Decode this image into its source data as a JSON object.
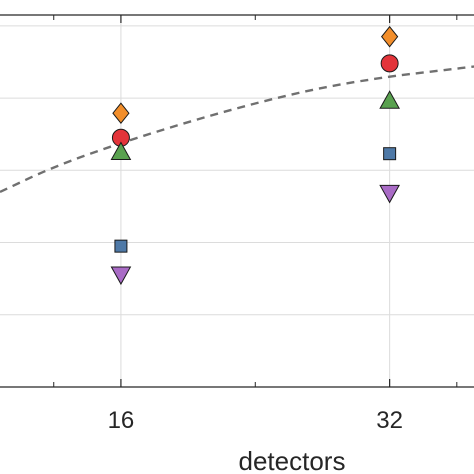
{
  "chart_data": {
    "type": "scatter",
    "xlabel": "detectors",
    "x_ticks": [
      16,
      32
    ],
    "xlim": [
      8.8,
      37.5
    ],
    "ylim": [
      0,
      5.15
    ],
    "grid": true,
    "series": [
      {
        "marker": "diamond",
        "color": "#F28E2B",
        "points": [
          [
            16,
            3.79
          ],
          [
            32,
            4.85
          ]
        ]
      },
      {
        "marker": "circle",
        "color": "#E3343A",
        "points": [
          [
            16,
            3.45
          ],
          [
            32,
            4.48
          ]
        ]
      },
      {
        "marker": "triangle-up",
        "color": "#59A14F",
        "points": [
          [
            16,
            3.26
          ],
          [
            32,
            3.97
          ]
        ]
      },
      {
        "marker": "square",
        "color": "#4E79A7",
        "points": [
          [
            16,
            1.95
          ],
          [
            32,
            3.23
          ]
        ]
      },
      {
        "marker": "triangle-down",
        "color": "#A96BC6",
        "points": [
          [
            16,
            1.55
          ],
          [
            32,
            2.68
          ]
        ]
      }
    ],
    "trend_line": {
      "style": "dashed",
      "color": "#707070",
      "points": [
        [
          8.8,
          2.7
        ],
        [
          12,
          3.05
        ],
        [
          16,
          3.38
        ],
        [
          20,
          3.67
        ],
        [
          24,
          3.93
        ],
        [
          28,
          4.15
        ],
        [
          32,
          4.3
        ],
        [
          35,
          4.38
        ],
        [
          37.5,
          4.45
        ]
      ]
    }
  }
}
